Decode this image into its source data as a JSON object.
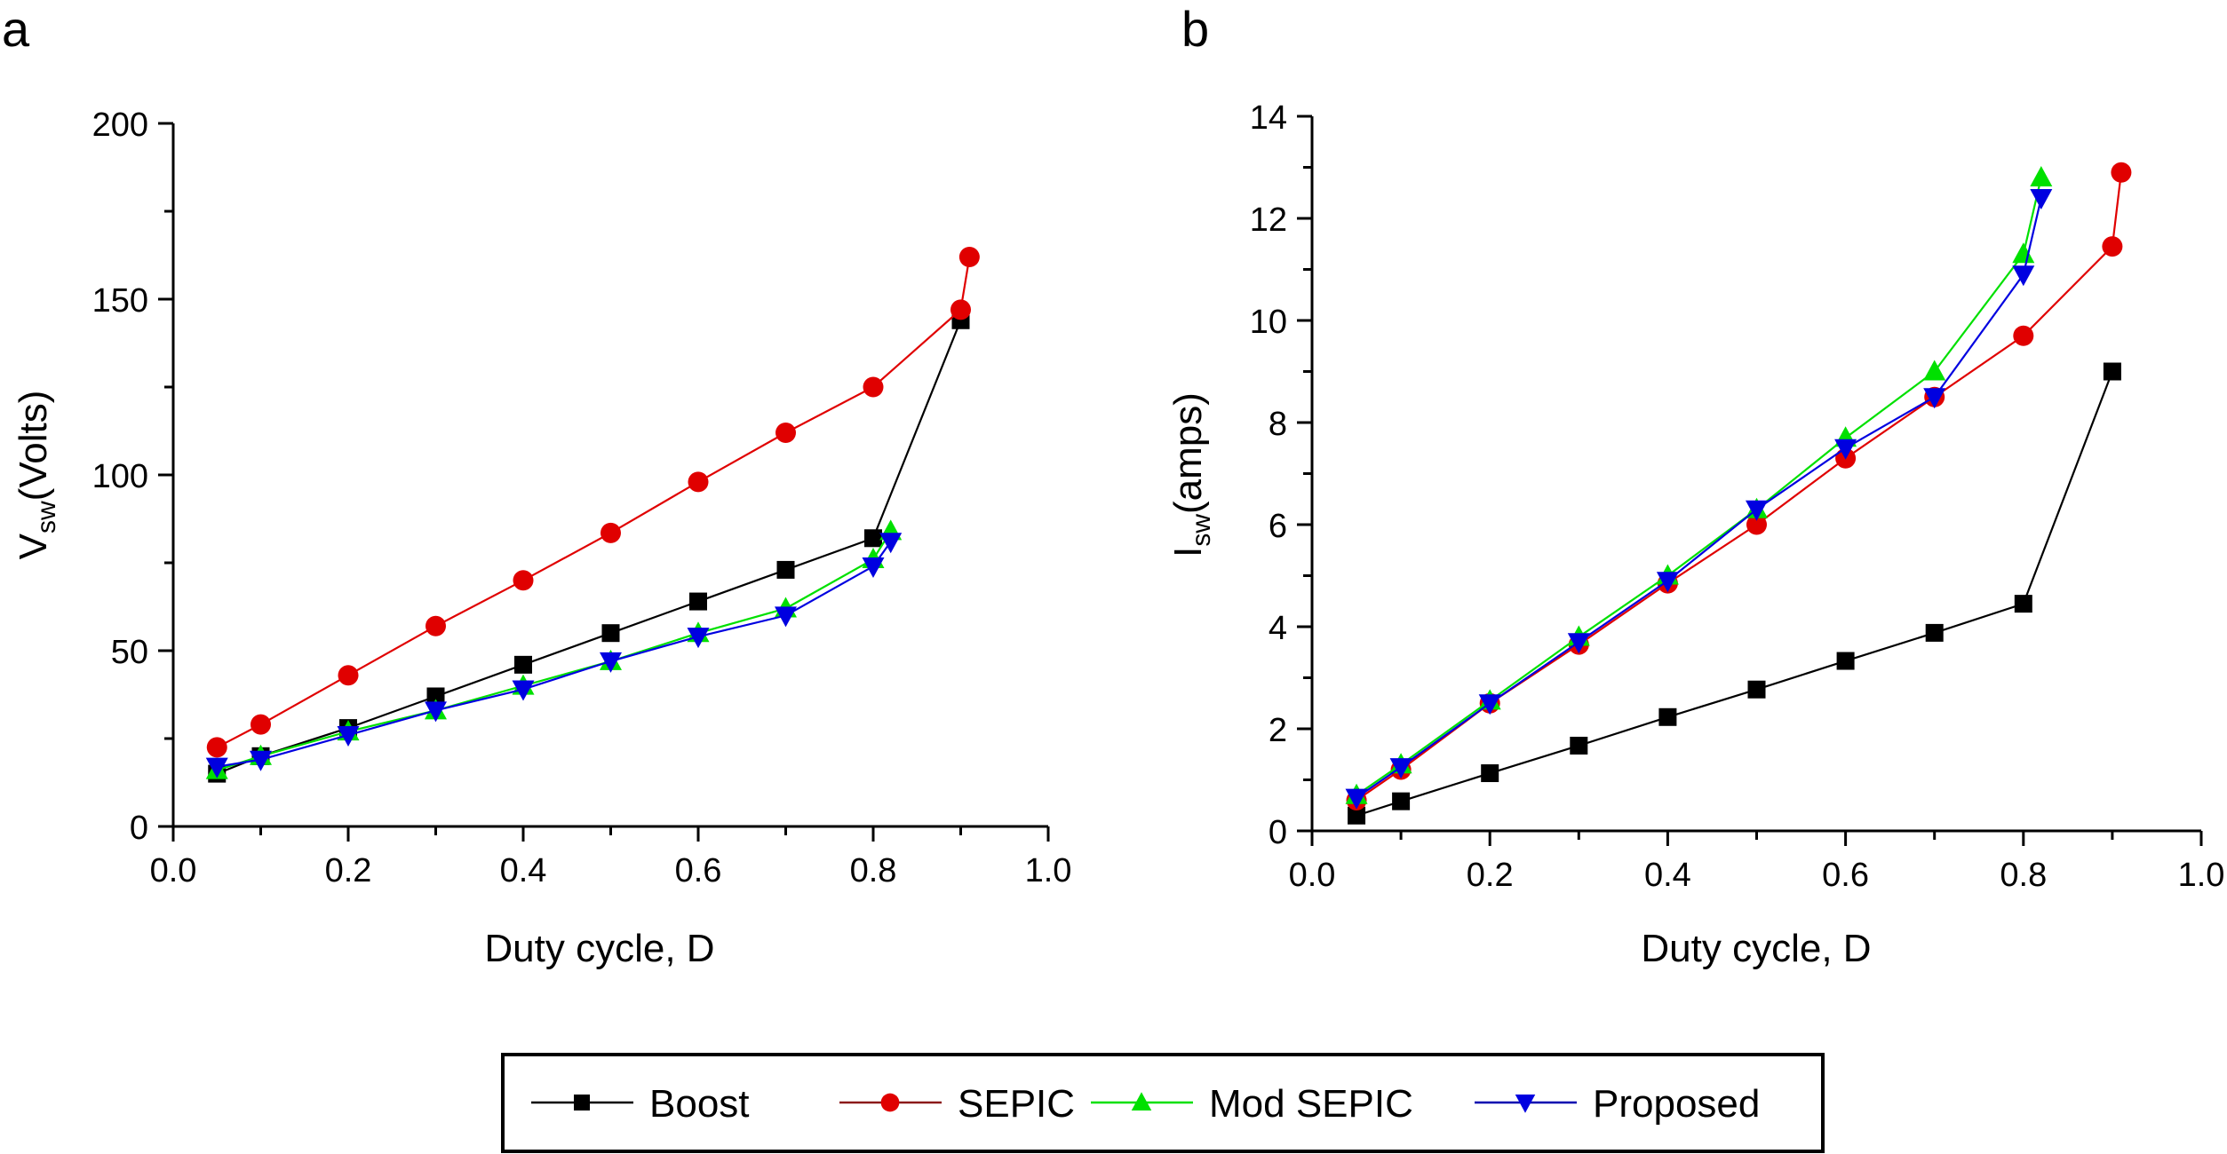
{
  "chart_data": [
    {
      "type": "line",
      "panel_label": "a",
      "xlabel": "Duty cycle, D",
      "ylabel_main": "V",
      "ylabel_sub": "sw",
      "ylabel_rest": "(Volts)",
      "xlim": [
        0.0,
        1.0
      ],
      "ylim": [
        0,
        200
      ],
      "xticks": [
        "0.0",
        "0.2",
        "0.4",
        "0.6",
        "0.8",
        "1.0"
      ],
      "yticks": [
        "0",
        "50",
        "100",
        "150",
        "200"
      ],
      "grid": false,
      "series": [
        {
          "name": "Boost",
          "color": "#000000",
          "marker": "square",
          "x": [
            0.05,
            0.1,
            0.2,
            0.3,
            0.4,
            0.5,
            0.6,
            0.7,
            0.8,
            0.9
          ],
          "y": [
            15,
            20,
            28,
            37,
            46,
            55,
            64,
            73,
            82,
            144
          ]
        },
        {
          "name": "SEPIC",
          "color": "#e00000",
          "marker": "circle",
          "x": [
            0.05,
            0.1,
            0.2,
            0.3,
            0.4,
            0.5,
            0.6,
            0.7,
            0.8,
            0.9,
            0.91
          ],
          "y": [
            22.5,
            29,
            43,
            57,
            70,
            83.5,
            98,
            112,
            125,
            147,
            162
          ]
        },
        {
          "name": "Mod SEPIC",
          "color": "#00e000",
          "marker": "triangle-up",
          "x": [
            0.05,
            0.1,
            0.2,
            0.3,
            0.4,
            0.5,
            0.6,
            0.7,
            0.8,
            0.82
          ],
          "y": [
            16,
            20,
            27,
            33,
            40,
            47,
            55,
            62,
            76,
            84
          ]
        },
        {
          "name": "Proposed",
          "color": "#0000e0",
          "marker": "triangle-down",
          "x": [
            0.05,
            0.1,
            0.2,
            0.3,
            0.4,
            0.5,
            0.6,
            0.7,
            0.8,
            0.82
          ],
          "y": [
            17,
            19,
            26,
            33,
            39,
            47,
            54,
            60,
            74,
            81
          ]
        }
      ]
    },
    {
      "type": "line",
      "panel_label": "b",
      "xlabel": "Duty cycle, D",
      "ylabel_main": "I",
      "ylabel_sub": "sw",
      "ylabel_rest": "(amps)",
      "xlim": [
        0.0,
        1.0
      ],
      "ylim": [
        0,
        14
      ],
      "xticks": [
        "0.0",
        "0.2",
        "0.4",
        "0.6",
        "0.8",
        "1.0"
      ],
      "yticks": [
        "0",
        "2",
        "4",
        "6",
        "8",
        "10",
        "12",
        "14"
      ],
      "grid": false,
      "series": [
        {
          "name": "Boost",
          "color": "#000000",
          "marker": "square",
          "x": [
            0.05,
            0.1,
            0.2,
            0.3,
            0.4,
            0.5,
            0.6,
            0.7,
            0.8,
            0.9
          ],
          "y": [
            0.3,
            0.58,
            1.13,
            1.67,
            2.23,
            2.77,
            3.33,
            3.88,
            4.45,
            9.0
          ]
        },
        {
          "name": "SEPIC",
          "color": "#e00000",
          "marker": "circle",
          "x": [
            0.05,
            0.1,
            0.2,
            0.3,
            0.4,
            0.5,
            0.6,
            0.7,
            0.8,
            0.9,
            0.91
          ],
          "y": [
            0.6,
            1.2,
            2.5,
            3.65,
            4.85,
            6.0,
            7.3,
            8.5,
            9.7,
            11.45,
            12.9
          ]
        },
        {
          "name": "Mod SEPIC",
          "color": "#00e000",
          "marker": "triangle-up",
          "x": [
            0.05,
            0.1,
            0.2,
            0.3,
            0.4,
            0.5,
            0.6,
            0.7,
            0.8,
            0.82
          ],
          "y": [
            0.7,
            1.3,
            2.55,
            3.8,
            5.0,
            6.3,
            7.7,
            9.0,
            11.3,
            12.8
          ]
        },
        {
          "name": "Proposed",
          "color": "#0000e0",
          "marker": "triangle-down",
          "x": [
            0.05,
            0.1,
            0.2,
            0.3,
            0.4,
            0.5,
            0.6,
            0.7,
            0.8,
            0.82
          ],
          "y": [
            0.65,
            1.25,
            2.5,
            3.7,
            4.9,
            6.3,
            7.5,
            8.5,
            10.9,
            12.4
          ]
        }
      ]
    }
  ],
  "legend": {
    "placement": "bottom-center",
    "items": [
      {
        "label": "Boost",
        "color": "#000000",
        "line_color": "#000000",
        "marker": "square"
      },
      {
        "label": "SEPIC",
        "color": "#e00000",
        "line_color": "#8b1a1a",
        "marker": "circle"
      },
      {
        "label": "Mod SEPIC",
        "color": "#00e000",
        "line_color": "#00e000",
        "marker": "triangle-up"
      },
      {
        "label": "Proposed",
        "color": "#0000e0",
        "line_color": "#0000b0",
        "marker": "triangle-down"
      }
    ]
  }
}
